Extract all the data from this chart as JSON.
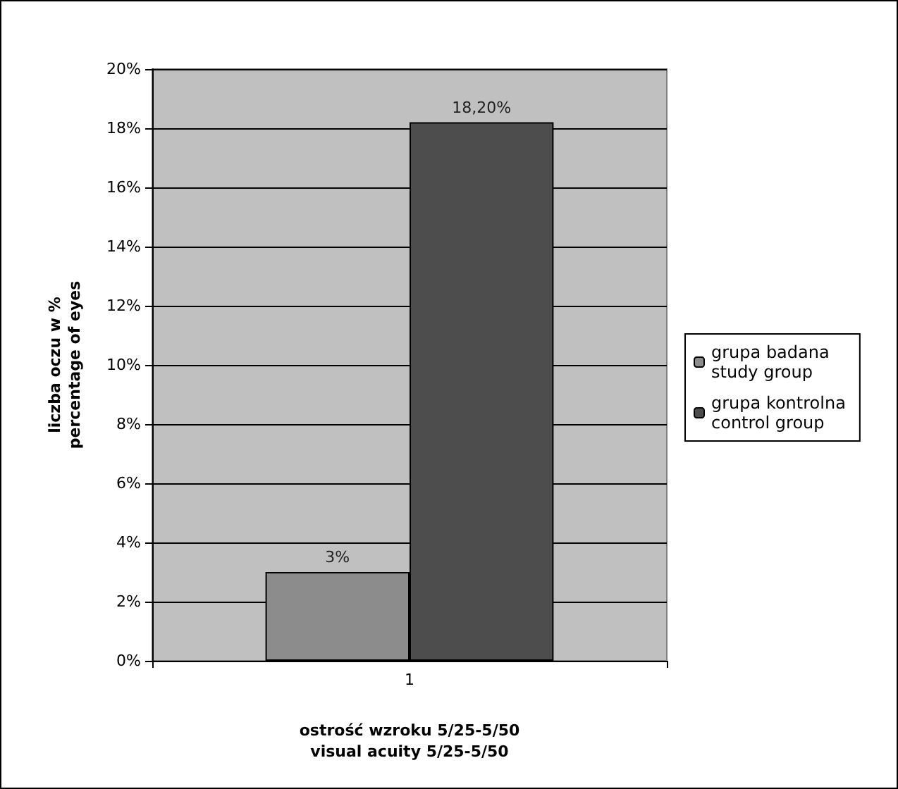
{
  "chart_data": {
    "type": "bar",
    "categories": [
      "1"
    ],
    "series": [
      {
        "name": "grupa badana\nstudy group",
        "color": "#8c8c8c",
        "values": [
          3
        ],
        "value_labels": [
          "3%"
        ]
      },
      {
        "name": "grupa kontrolna\ncontrol group",
        "color": "#4d4d4d",
        "values": [
          18.2
        ],
        "value_labels": [
          "18,20%"
        ]
      }
    ],
    "ylim": [
      0,
      20
    ],
    "yticks": [
      {
        "value": 0,
        "label": "0%"
      },
      {
        "value": 2,
        "label": "2%"
      },
      {
        "value": 4,
        "label": "4%"
      },
      {
        "value": 6,
        "label": "6%"
      },
      {
        "value": 8,
        "label": "8%"
      },
      {
        "value": 10,
        "label": "10%"
      },
      {
        "value": 12,
        "label": "12%"
      },
      {
        "value": 14,
        "label": "14%"
      },
      {
        "value": 16,
        "label": "16%"
      },
      {
        "value": 18,
        "label": "18%"
      },
      {
        "value": 20,
        "label": "20%"
      }
    ],
    "ylabel": "liczba oczu w %\npercentage of eyes",
    "xlabel": "ostrość wzroku 5/25-5/50\nvisual acuity 5/25-5/50",
    "grid": "y",
    "legend": "right"
  }
}
